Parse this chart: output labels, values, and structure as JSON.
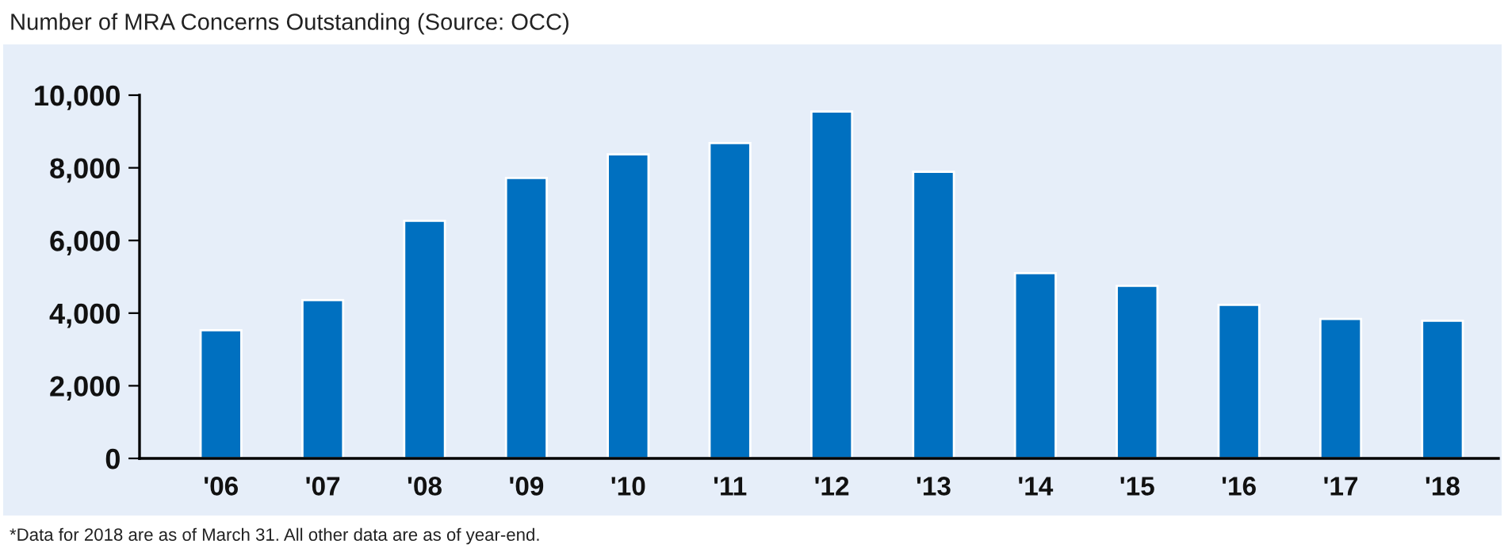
{
  "chart_data": {
    "type": "bar",
    "title": "Number of MRA Concerns Outstanding (Source: OCC)",
    "categories": [
      "'06",
      "'07",
      "'08",
      "'09",
      "'10",
      "'11",
      "'12",
      "'13",
      "'14",
      "'15",
      "'16",
      "'17",
      "'18"
    ],
    "values": [
      3530,
      4360,
      6540,
      7720,
      8370,
      8680,
      9550,
      7890,
      5100,
      4750,
      4230,
      3840,
      3790
    ],
    "color": "#0070c0",
    "ylim": [
      0,
      10000
    ],
    "yticks": [
      {
        "value": 0,
        "label": "0"
      },
      {
        "value": 2000,
        "label": "2,000"
      },
      {
        "value": 4000,
        "label": "4,000"
      },
      {
        "value": 6000,
        "label": "6,000"
      },
      {
        "value": 8000,
        "label": "8,000"
      },
      {
        "value": 10000,
        "label": "10,000"
      }
    ],
    "grid": false,
    "annotations": [
      "*Data for 2018 are as of March 31. All other data are as of year-end."
    ]
  }
}
